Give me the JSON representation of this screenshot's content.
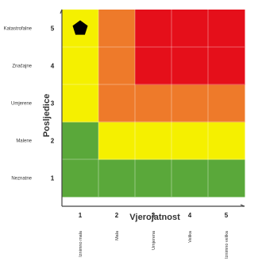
{
  "chart_data": {
    "type": "heatmap",
    "title": "",
    "xlabel": "Vjerojatnost",
    "ylabel": "Posljedice",
    "x_ticks": [
      "1",
      "2",
      "3",
      "4",
      "5"
    ],
    "x_tick_labels": [
      "Iznimno mala",
      "Mala",
      "Umjerena",
      "Velika",
      "Iznimno velika"
    ],
    "y_ticks": [
      "1",
      "2",
      "3",
      "4",
      "5"
    ],
    "y_tick_labels": [
      "Neznatne",
      "Malene",
      "Umjerene",
      "Značajne",
      "Katastrofalne"
    ],
    "colors": {
      "green": "#5aa83a",
      "yellow": "#f5f000",
      "orange": "#ee7a2a",
      "red": "#e50f1a"
    },
    "cells": [
      [
        "green",
        "green",
        "green",
        "green",
        "green"
      ],
      [
        "green",
        "yellow",
        "yellow",
        "yellow",
        "yellow"
      ],
      [
        "yellow",
        "orange",
        "orange",
        "orange",
        "orange"
      ],
      [
        "yellow",
        "orange",
        "red",
        "red",
        "red"
      ],
      [
        "yellow",
        "orange",
        "red",
        "red",
        "red"
      ]
    ],
    "marker": {
      "shape": "pentagon",
      "x": 1,
      "y": 5,
      "color": "#000000"
    }
  }
}
